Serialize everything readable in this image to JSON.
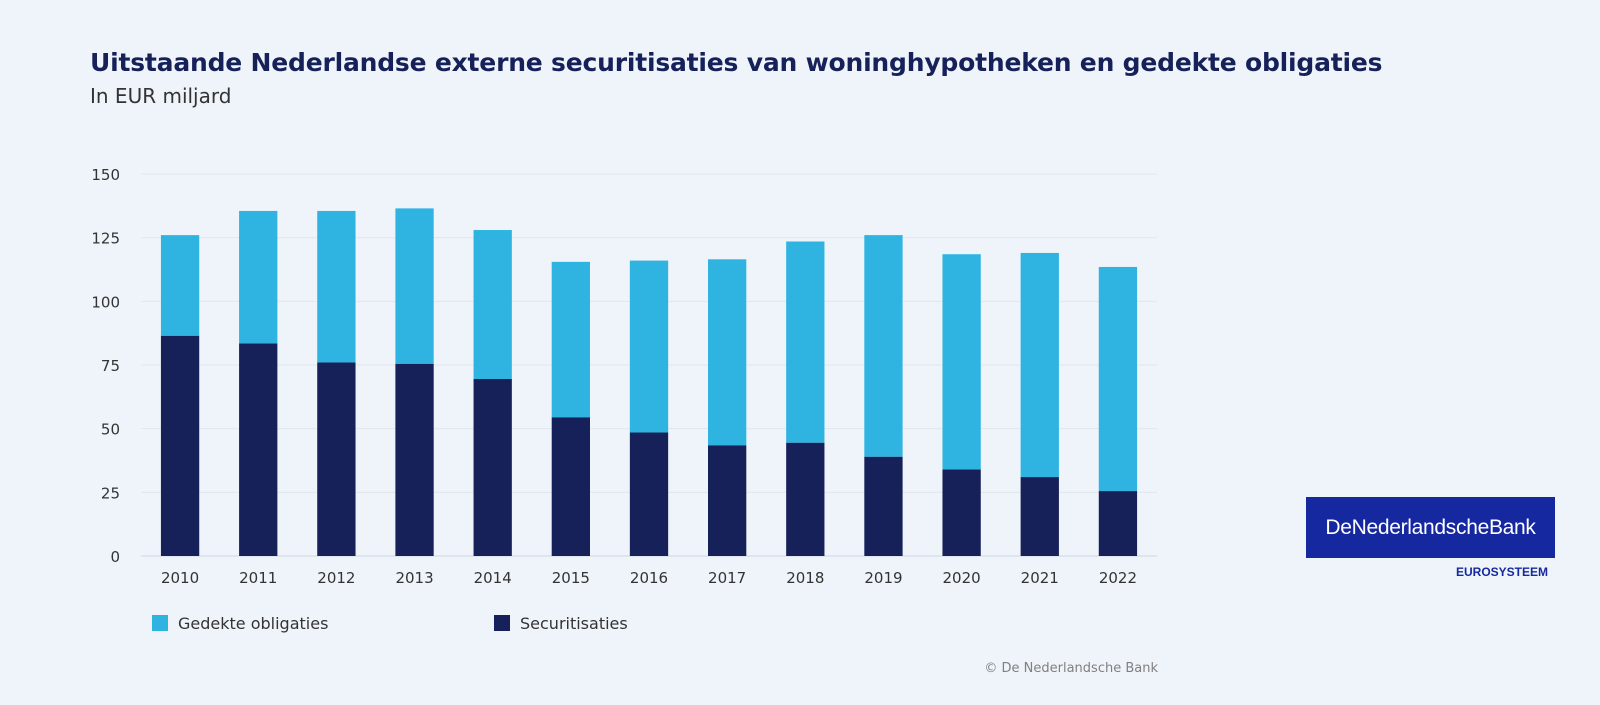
{
  "chart_data": {
    "type": "bar",
    "stacked": true,
    "title": "Uitstaande Nederlandse externe securitisaties van woninghypotheken en gedekte obligaties",
    "subtitle": "In EUR miljard",
    "categories": [
      "2010",
      "2011",
      "2012",
      "2013",
      "2014",
      "2015",
      "2016",
      "2017",
      "2018",
      "2019",
      "2020",
      "2021",
      "2022"
    ],
    "series": [
      {
        "name": "Securitisaties",
        "color": "#16215a",
        "values": [
          86.5,
          83.5,
          76,
          75.5,
          69.5,
          54.5,
          48.5,
          43.5,
          44.5,
          39,
          34,
          31,
          25.5
        ]
      },
      {
        "name": "Gedekte obligaties",
        "color": "#2fb4e2",
        "values": [
          39.5,
          52,
          59.5,
          61,
          58.5,
          61,
          67.5,
          73,
          79,
          87,
          84.5,
          88,
          88
        ]
      }
    ],
    "ylim": [
      0,
      150
    ],
    "yticks": [
      "0",
      "25",
      "50",
      "75",
      "100",
      "125",
      "150"
    ],
    "grid": true,
    "legend_position": "bottom-left"
  },
  "legend": {
    "items": [
      {
        "label": "Gedekte obligaties",
        "color": "#2fb4e2"
      },
      {
        "label": "Securitisaties",
        "color": "#16215a"
      }
    ]
  },
  "credit": "© De Nederlandsche Bank",
  "logo": {
    "name": "DeNederlandscheBank",
    "subtitle": "EUROSYSTEEM",
    "color": "#1628a0"
  }
}
